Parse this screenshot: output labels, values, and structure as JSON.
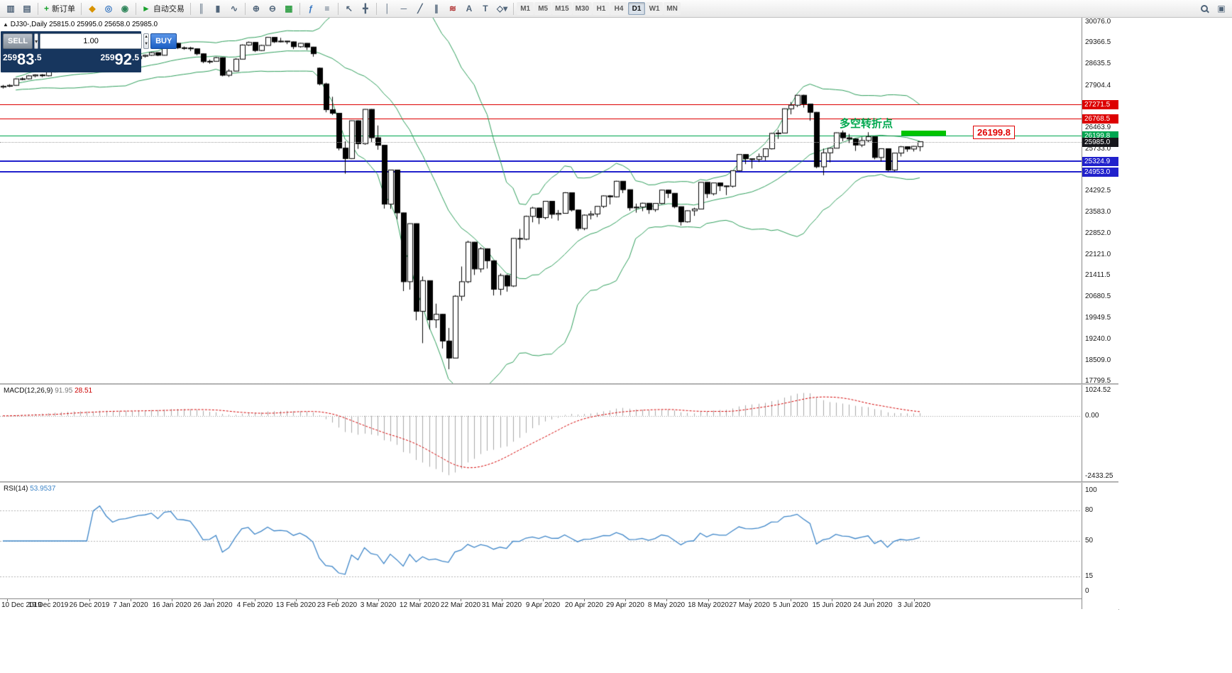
{
  "toolbar": {
    "groups": [
      {
        "items": [
          {
            "name": "new-chart-icon",
            "glyph": "▥",
            "color": "#51657a"
          },
          {
            "name": "chart-profiles-icon",
            "glyph": "▤",
            "color": "#51657a"
          }
        ]
      },
      {
        "items": [
          {
            "name": "new-order-button",
            "glyph": "+",
            "color": "#18a12c",
            "label": "新订单"
          }
        ]
      },
      {
        "items": [
          {
            "name": "quotes-icon",
            "glyph": "◆",
            "color": "#d89300"
          },
          {
            "name": "navigator-icon",
            "glyph": "◎",
            "color": "#3a79c3"
          },
          {
            "name": "terminal-icon",
            "glyph": "◉",
            "color": "#2f855a"
          }
        ]
      },
      {
        "items": [
          {
            "name": "autotrading-button",
            "glyph": "►",
            "color": "#18a12c",
            "label": "自动交易"
          }
        ]
      },
      {
        "items": [
          {
            "name": "bar-chart-icon",
            "glyph": "║",
            "color": "#51657a"
          },
          {
            "name": "candlestick-chart-icon",
            "glyph": "▮",
            "color": "#51657a"
          },
          {
            "name": "line-chart-icon",
            "glyph": "∿",
            "color": "#51657a"
          }
        ]
      },
      {
        "items": [
          {
            "name": "zoom-in-icon",
            "glyph": "⊕",
            "color": "#51657a"
          },
          {
            "name": "zoom-out-icon",
            "glyph": "⊖",
            "color": "#51657a"
          },
          {
            "name": "grid-icon",
            "glyph": "▦",
            "color": "#2f9e44"
          }
        ]
      },
      {
        "items": [
          {
            "name": "indicators-icon",
            "glyph": "ƒ",
            "color": "#3a79c3"
          },
          {
            "name": "objects-list-icon",
            "glyph": "≡",
            "color": "#51657a"
          }
        ]
      },
      {
        "items": [
          {
            "name": "cursor-icon",
            "glyph": "↖",
            "color": "#51657a"
          },
          {
            "name": "crosshair-icon",
            "glyph": "╋",
            "color": "#51657a"
          }
        ]
      },
      {
        "items": [
          {
            "name": "vertical-line-icon",
            "glyph": "│",
            "color": "#51657a"
          },
          {
            "name": "horizontal-line-icon",
            "glyph": "─",
            "color": "#51657a"
          },
          {
            "name": "trendline-icon",
            "glyph": "╱",
            "color": "#51657a"
          },
          {
            "name": "channel-icon",
            "glyph": "∥",
            "color": "#51657a"
          },
          {
            "name": "fibonacci-icon",
            "glyph": "≋",
            "color": "#b03030"
          },
          {
            "name": "text-icon",
            "glyph": "A",
            "color": "#51657a"
          },
          {
            "name": "label-icon",
            "glyph": "T",
            "color": "#51657a"
          },
          {
            "name": "shapes-icon",
            "glyph": "◇▾",
            "color": "#51657a"
          }
        ]
      }
    ],
    "timeframes": [
      "M1",
      "M5",
      "M15",
      "M30",
      "H1",
      "H4",
      "D1",
      "W1",
      "MN"
    ],
    "active_timeframe": "D1",
    "right_icons": [
      {
        "name": "search-icon",
        "type": "magnifier"
      },
      {
        "name": "windows-icon",
        "glyph": "▣",
        "color": "#51657a"
      }
    ]
  },
  "trade_panel": {
    "sell_label": "SELL",
    "buy_label": "BUY",
    "lot_value": "1.00",
    "sell_price": "25983.5",
    "buy_price": "25992.5"
  },
  "chart": {
    "symbol_label": "DJ30-,Daily",
    "ohlc_text": "25815.0 25995.0 25658.0 25985.0",
    "annotation_text": "多空转折点",
    "callout_price": "26199.8",
    "price_scale_labels": [
      30076.0,
      29366.5,
      28635.5,
      27904.4,
      27173.4,
      26463.9,
      25733.0,
      24292.5,
      23583.0,
      22852.0,
      22121.0,
      21411.5,
      20680.5,
      19949.5,
      19240.0,
      18509.0,
      17799.5
    ],
    "price_tags": [
      {
        "text": "27271.5",
        "color": "#dd0000"
      },
      {
        "text": "26768.5",
        "color": "#dd0000"
      },
      {
        "text": "26199.8",
        "color": "#00a650"
      },
      {
        "text": "25985.0",
        "color": "#17171c"
      },
      {
        "text": "25324.9",
        "color": "#2121cc"
      },
      {
        "text": "24953.0",
        "color": "#2121cc"
      }
    ]
  },
  "macd_panel": {
    "label": "MACD(12,26,9)",
    "value_main": "91.95",
    "value_signal": "28.51",
    "scale_max": "1024.52",
    "scale_zero": "0.00",
    "scale_min": "-2433.25"
  },
  "rsi_panel": {
    "label": "RSI(14)",
    "value": "53.9537",
    "scale_labels": [
      "100",
      "80",
      "50",
      "15",
      "0"
    ],
    "levels": [
      80,
      50,
      15
    ]
  },
  "chart_data": {
    "type": "candlestick",
    "symbol": "DJ30-",
    "timeframe": "Daily",
    "title": "DJ30-,Daily",
    "y_range": [
      17799.5,
      30076.0
    ],
    "x_labels": [
      "10 Dec 2019",
      "19 Dec 2019",
      "26 Dec 2019",
      "7 Jan 2020",
      "16 Jan 2020",
      "26 Jan 2020",
      "4 Feb 2020",
      "13 Feb 2020",
      "23 Feb 2020",
      "3 Mar 2020",
      "12 Mar 2020",
      "22 Mar 2020",
      "31 Mar 2020",
      "9 Apr 2020",
      "20 Apr 2020",
      "29 Apr 2020",
      "8 May 2020",
      "18 May 2020",
      "27 May 2020",
      "5 Jun 2020",
      "15 Jun 2020",
      "24 Jun 2020",
      "3 Jul 2020"
    ],
    "ohlc_current": [
      25815.0,
      25995.0,
      25658.0,
      25985.0
    ],
    "bid_price": 25985.0,
    "overlays": {
      "bollinger": {
        "period": 20,
        "deviation": 2,
        "color": "#2e9e5b"
      },
      "horizontal_lines": [
        {
          "value": 27271.5,
          "color": "#dd0000",
          "width": 1
        },
        {
          "value": 26768.5,
          "color": "#dd0000",
          "width": 1
        },
        {
          "value": 26199.8,
          "color": "#00a650",
          "width": 1
        },
        {
          "value": 25324.9,
          "color": "#2121cc",
          "width": 2
        },
        {
          "value": 24953.0,
          "color": "#2121cc",
          "width": 2
        }
      ]
    },
    "indicators": [
      {
        "type": "MACD",
        "params": [
          12,
          26,
          9
        ],
        "current": [
          91.95,
          28.51
        ],
        "scale": [
          -2433.25,
          1024.52
        ]
      },
      {
        "type": "RSI",
        "params": [
          14
        ],
        "current": 53.9537,
        "levels": [
          80,
          50,
          15
        ],
        "scale": [
          0,
          100
        ]
      }
    ],
    "candles": [
      [
        27850,
        27925,
        27804,
        27881
      ],
      [
        27881,
        27949,
        27851,
        27911
      ],
      [
        27911,
        28154,
        27890,
        28132
      ],
      [
        28132,
        28184,
        28085,
        28135
      ],
      [
        28135,
        28261,
        28110,
        28235
      ],
      [
        28235,
        28290,
        28188,
        28267
      ],
      [
        28267,
        28298,
        28191,
        28239
      ],
      [
        28239,
        28401,
        28220,
        28376
      ],
      [
        28376,
        28479,
        28350,
        28455
      ],
      [
        28455,
        28576,
        28430,
        28551
      ],
      [
        28551,
        28580,
        28479,
        28515
      ],
      [
        28515,
        28645,
        28500,
        28621
      ],
      [
        28621,
        28650,
        28505,
        28539
      ],
      [
        28539,
        28560,
        28428,
        28462
      ],
      [
        28462,
        28562,
        28430,
        28538
      ],
      [
        28538,
        28890,
        28530,
        28869
      ],
      [
        28869,
        28880,
        28640,
        28703
      ],
      [
        28703,
        28740,
        28550,
        28583
      ],
      [
        28583,
        28735,
        28565,
        28711
      ],
      [
        28711,
        28780,
        28680,
        28745
      ],
      [
        28745,
        28855,
        28720,
        28823
      ],
      [
        28823,
        28925,
        28800,
        28907
      ],
      [
        28907,
        28965,
        28860,
        28939
      ],
      [
        28939,
        29055,
        28920,
        29030
      ],
      [
        29030,
        29040,
        28910,
        28939
      ],
      [
        28939,
        29310,
        28930,
        29297
      ],
      [
        29297,
        29374,
        29270,
        29348
      ],
      [
        29348,
        29360,
        29150,
        29196
      ],
      [
        29196,
        29240,
        29125,
        29186
      ],
      [
        29186,
        29230,
        29080,
        29160
      ],
      [
        29160,
        29170,
        28940,
        28989
      ],
      [
        28989,
        29000,
        28670,
        28722
      ],
      [
        28722,
        28790,
        28650,
        28734
      ],
      [
        28734,
        28890,
        28720,
        28859
      ],
      [
        28859,
        28870,
        28220,
        28256
      ],
      [
        28256,
        28460,
        28200,
        28399
      ],
      [
        28399,
        28840,
        28390,
        28807
      ],
      [
        28807,
        29310,
        28800,
        29290
      ],
      [
        29290,
        29409,
        29260,
        29379
      ],
      [
        29379,
        29390,
        29050,
        29102
      ],
      [
        29102,
        29300,
        29080,
        29276
      ],
      [
        29276,
        29568,
        29270,
        29551
      ],
      [
        29551,
        29560,
        29360,
        29398
      ],
      [
        29398,
        29535,
        29380,
        29423
      ],
      [
        29423,
        29430,
        29320,
        29398
      ],
      [
        29398,
        29410,
        29150,
        29232
      ],
      [
        29232,
        29360,
        29200,
        29348
      ],
      [
        29348,
        29355,
        29120,
        29220
      ],
      [
        29220,
        29230,
        28890,
        28992
      ],
      [
        28500,
        28520,
        27910,
        27961
      ],
      [
        27961,
        28000,
        26990,
        27081
      ],
      [
        27081,
        27520,
        26900,
        26958
      ],
      [
        26958,
        26970,
        25690,
        25767
      ],
      [
        25767,
        26000,
        24890,
        25409
      ],
      [
        25409,
        26710,
        25390,
        26703
      ],
      [
        26703,
        26720,
        25740,
        25917
      ],
      [
        25917,
        27100,
        25880,
        27090
      ],
      [
        27090,
        27100,
        25970,
        26121
      ],
      [
        26121,
        26540,
        25710,
        25864
      ],
      [
        25864,
        25870,
        23700,
        23851
      ],
      [
        23851,
        25020,
        23690,
        25018
      ],
      [
        25018,
        25030,
        23330,
        23553
      ],
      [
        23553,
        23560,
        20880,
        21200
      ],
      [
        21200,
        23190,
        20930,
        23185
      ],
      [
        23185,
        23190,
        19880,
        20188
      ],
      [
        20188,
        21380,
        19100,
        21237
      ],
      [
        21237,
        21240,
        19570,
        19899
      ],
      [
        19899,
        20450,
        19620,
        20087
      ],
      [
        20087,
        20100,
        18920,
        19174
      ],
      [
        19174,
        19620,
        18210,
        18592
      ],
      [
        18592,
        20740,
        18590,
        20705
      ],
      [
        20705,
        21720,
        20550,
        21200
      ],
      [
        21200,
        22600,
        21150,
        22552
      ],
      [
        22552,
        22560,
        21430,
        21637
      ],
      [
        21637,
        22380,
        21520,
        22327
      ],
      [
        22327,
        22340,
        21650,
        21917
      ],
      [
        21917,
        21930,
        20730,
        20943
      ],
      [
        20943,
        21480,
        20740,
        21413
      ],
      [
        21413,
        21450,
        20860,
        21053
      ],
      [
        21053,
        22690,
        21020,
        22680
      ],
      [
        22680,
        23000,
        22330,
        22654
      ],
      [
        22654,
        23460,
        22620,
        23434
      ],
      [
        23434,
        23760,
        23230,
        23719
      ],
      [
        23719,
        23730,
        23170,
        23391
      ],
      [
        23391,
        23960,
        23330,
        23949
      ],
      [
        23949,
        23960,
        23360,
        23504
      ],
      [
        23504,
        23650,
        23290,
        23538
      ],
      [
        23538,
        24260,
        23530,
        24242
      ],
      [
        24242,
        24250,
        23600,
        23651
      ],
      [
        23651,
        23660,
        22940,
        23019
      ],
      [
        23019,
        23500,
        22960,
        23476
      ],
      [
        23476,
        23620,
        23330,
        23515
      ],
      [
        23515,
        23790,
        23410,
        23775
      ],
      [
        23775,
        24150,
        23720,
        24134
      ],
      [
        24134,
        24160,
        23840,
        24102
      ],
      [
        24102,
        24650,
        24080,
        24634
      ],
      [
        24634,
        24640,
        24230,
        24346
      ],
      [
        24346,
        24350,
        23630,
        23724
      ],
      [
        23724,
        23870,
        23560,
        23750
      ],
      [
        23750,
        23900,
        23610,
        23883
      ],
      [
        23883,
        23890,
        23520,
        23665
      ],
      [
        23665,
        23890,
        23590,
        23876
      ],
      [
        23876,
        24340,
        23850,
        24331
      ],
      [
        24331,
        24340,
        24060,
        24222
      ],
      [
        24222,
        24230,
        23710,
        23765
      ],
      [
        23765,
        23770,
        23120,
        23248
      ],
      [
        23248,
        23640,
        23220,
        23625
      ],
      [
        23625,
        23730,
        23450,
        23685
      ],
      [
        23685,
        24600,
        23680,
        24597
      ],
      [
        24597,
        24600,
        24060,
        24207
      ],
      [
        24207,
        24580,
        24150,
        24576
      ],
      [
        24576,
        24590,
        24300,
        24474
      ],
      [
        24474,
        24480,
        24160,
        24465
      ],
      [
        24465,
        25000,
        24420,
        24995
      ],
      [
        24995,
        25550,
        24970,
        25548
      ],
      [
        25548,
        25560,
        25220,
        25401
      ],
      [
        25401,
        25410,
        25070,
        25383
      ],
      [
        25383,
        25580,
        25290,
        25475
      ],
      [
        25475,
        25760,
        25340,
        25743
      ],
      [
        25743,
        26290,
        25720,
        26270
      ],
      [
        26270,
        26390,
        26080,
        26282
      ],
      [
        26282,
        27120,
        26280,
        27111
      ],
      [
        27111,
        27340,
        26920,
        27232
      ],
      [
        27232,
        27580,
        27170,
        27572
      ],
      [
        27572,
        27590,
        27150,
        27272
      ],
      [
        27272,
        27280,
        26700,
        26990
      ],
      [
        26990,
        27000,
        25080,
        25128
      ],
      [
        25128,
        25750,
        24840,
        25605
      ],
      [
        25605,
        25770,
        25280,
        25763
      ],
      [
        25763,
        26300,
        25760,
        26290
      ],
      [
        26290,
        26370,
        26000,
        26120
      ],
      [
        26120,
        26250,
        25940,
        26080
      ],
      [
        26080,
        26090,
        25670,
        25871
      ],
      [
        25871,
        26140,
        25800,
        26025
      ],
      [
        26025,
        26310,
        25960,
        26156
      ],
      [
        26156,
        26160,
        25380,
        25446
      ],
      [
        25446,
        25760,
        25310,
        25746
      ],
      [
        25746,
        25750,
        24970,
        25016
      ],
      [
        25016,
        25600,
        24970,
        25596
      ],
      [
        25596,
        25840,
        25480,
        25813
      ],
      [
        25813,
        25820,
        25640,
        25735
      ],
      [
        25735,
        25840,
        25650,
        25827
      ],
      [
        25815,
        25995,
        25658,
        25985
      ]
    ]
  }
}
